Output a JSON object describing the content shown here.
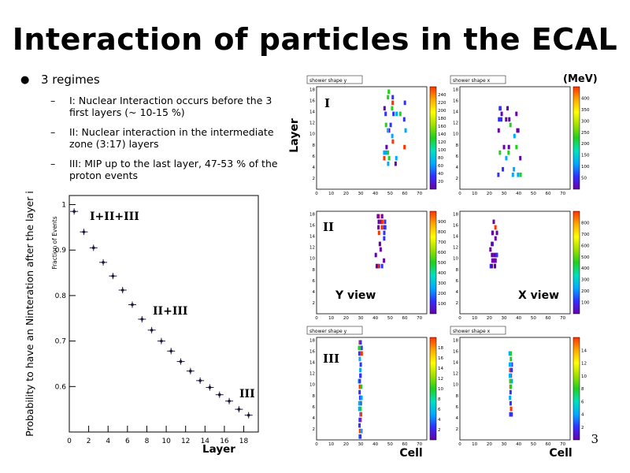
{
  "slide": {
    "title": "Interaction of particles in the ECAL",
    "page_number": "3"
  },
  "bullets": {
    "main": "3 regimes",
    "subs": [
      "I: Nuclear Interaction occurs before the 3 first layers (~ 10-15 %)",
      "II: Nuclear interaction in the intermediate zone (3:17) layers",
      "III: MIP up to the last layer, 47-53 % of the proton events"
    ]
  },
  "chart_data": [
    {
      "type": "scatter",
      "ylabel": "Probability to have an Ninteration after the layer i",
      "inner_ylabel": "Fraction of Events",
      "xlabel": "Layer",
      "xlim": [
        0,
        19.5
      ],
      "ylim": [
        0.5,
        1.02
      ],
      "xticks": [
        0,
        2,
        4,
        6,
        8,
        10,
        12,
        14,
        16,
        18
      ],
      "yticks": [
        0.6,
        0.7,
        0.8,
        0.9,
        1
      ],
      "x": [
        0.5,
        1.5,
        2.5,
        3.5,
        4.5,
        5.5,
        6.5,
        7.5,
        8.5,
        9.5,
        10.5,
        11.5,
        12.5,
        13.5,
        14.5,
        15.5,
        16.5,
        17.5,
        18.5
      ],
      "y": [
        0.985,
        0.94,
        0.905,
        0.873,
        0.843,
        0.812,
        0.78,
        0.748,
        0.724,
        0.7,
        0.678,
        0.655,
        0.634,
        0.613,
        0.598,
        0.582,
        0.568,
        0.55,
        0.537
      ],
      "annotations": [
        "I+II+III",
        "II+III",
        "III"
      ]
    }
  ],
  "heatmaps": {
    "title_y": "shower shape y",
    "title_x": "shower shape x",
    "units": "(MeV)",
    "axis_y_label": "Layer",
    "axis_x_label": "Cell",
    "y_view_label": "Y view",
    "x_view_label": "X view",
    "row_labels": [
      "I",
      "II",
      "III"
    ],
    "xticks": [
      "0",
      "10",
      "20",
      "30",
      "40",
      "50",
      "60",
      "70"
    ],
    "yticks": [
      "2",
      "4",
      "6",
      "8",
      "10",
      "12",
      "14",
      "16",
      "18"
    ],
    "colorbar_ticks": [
      [
        "20",
        "40",
        "60",
        "80",
        "100",
        "120",
        "140",
        "160",
        "180",
        "200",
        "220",
        "240"
      ],
      [
        "50",
        "100",
        "150",
        "200",
        "250",
        "300",
        "350",
        "400"
      ],
      [
        "100",
        "200",
        "300",
        "400",
        "500",
        "600",
        "700",
        "800",
        "900"
      ],
      [
        "100",
        "200",
        "300",
        "400",
        "500",
        "600",
        "700",
        "800"
      ],
      [
        "2",
        "4",
        "6",
        "8",
        "10",
        "12",
        "14",
        "16",
        "18"
      ],
      [
        "2",
        "4",
        "6",
        "8",
        "10",
        "12",
        "14"
      ]
    ]
  }
}
